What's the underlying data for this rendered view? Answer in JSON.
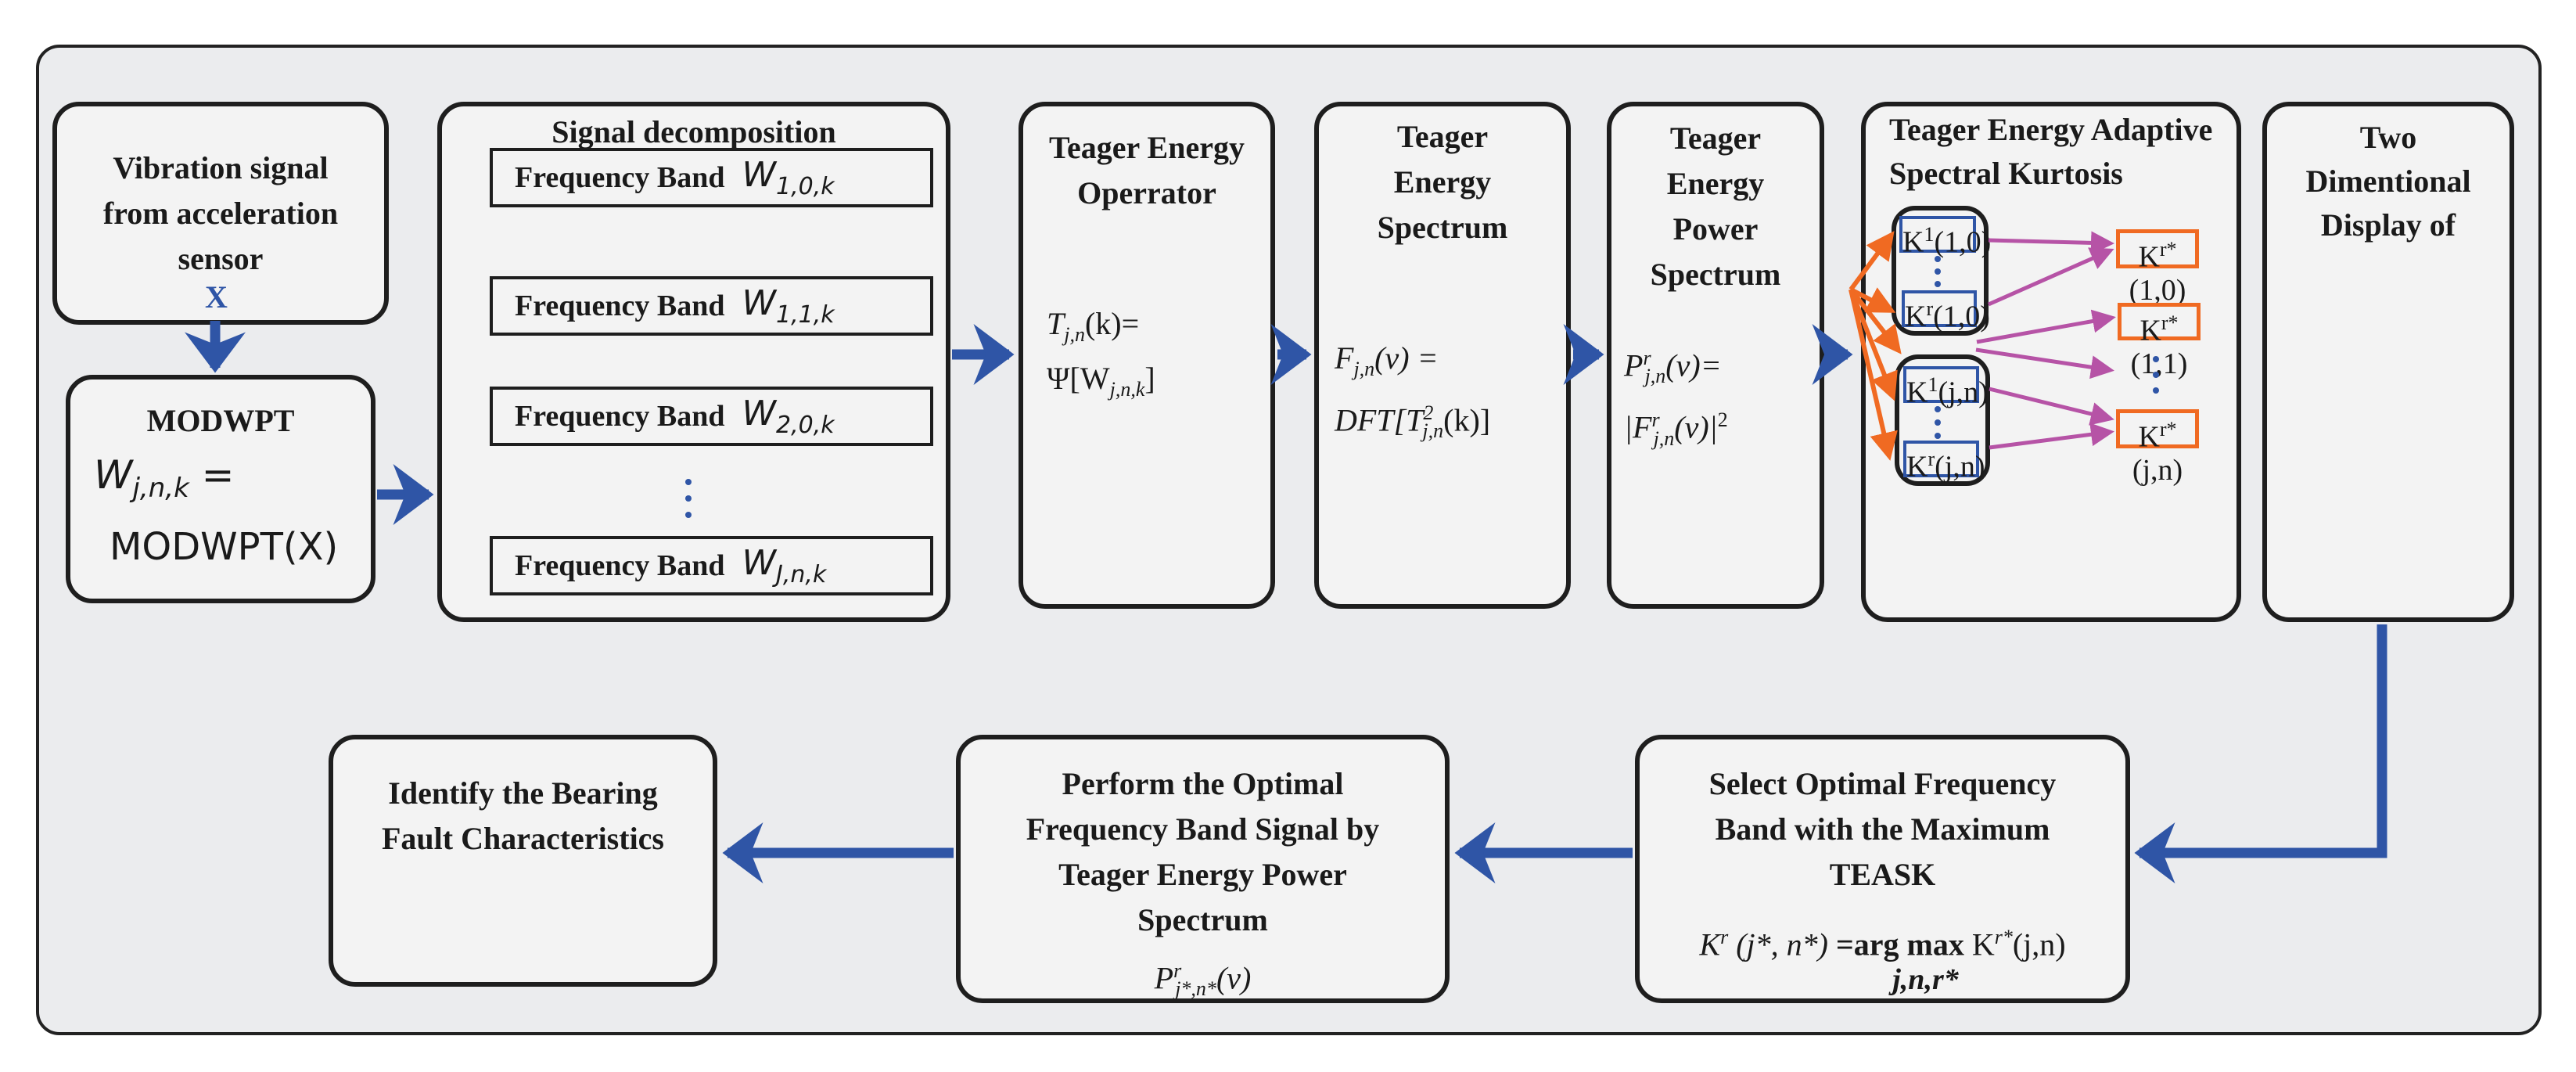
{
  "input": {
    "title": "Vibration signal from acceleration sensor",
    "x_label": "X"
  },
  "modwpt": {
    "title": "MODWPT",
    "f_base": "W",
    "f_sub": "j,n,k",
    "f_eq": " =",
    "f2": "MODWPT(X)"
  },
  "decomp": {
    "title": "Signal decomposition",
    "bands": [
      {
        "label": "Frequency Band",
        "sym": "W",
        "sub": "1,0,k"
      },
      {
        "label": "Frequency Band",
        "sym": "W",
        "sub": "1,1,k"
      },
      {
        "label": "Frequency Band",
        "sym": "W",
        "sub": "2,0,k"
      },
      {
        "label": "Frequency Band",
        "sym": "W",
        "sub": "J,n,k"
      }
    ]
  },
  "operator": {
    "title": "Teager Energy Operrator",
    "f1_base": "T",
    "f1_sub": "j,n",
    "f1_rest": "(k)=",
    "f2_pre": "Ψ[W",
    "f2_sub": "j,n,k",
    "f2_post": "]"
  },
  "spectrum": {
    "title": "Teager Energy Spectrum",
    "f1_base": "F",
    "f1_sub": "j,n",
    "f1_rest": "(ν) =",
    "f2_pre": "DFT[T",
    "f2_sup": "2",
    "f2_sub": "j,n",
    "f2_post": "(k)]"
  },
  "power": {
    "title": "Teager Energy Power Spectrum",
    "f1_base": "P",
    "f1_sup": "r",
    "f1_sub": "j,n",
    "f1_rest": "(ν)=",
    "f2_pre": "|F",
    "f2_sup": "r",
    "f2_sub": "j,n",
    "f2_post": "(ν)|",
    "f2_exp": "2"
  },
  "teask": {
    "title": "Teager Energy Adaptive Spectral Kurtosis",
    "items": [
      {
        "base": "K",
        "sup": "1",
        "arg": "(1,0)"
      },
      {
        "base": "K",
        "sup": "r",
        "arg": "(1,0)"
      },
      {
        "base": "K",
        "sup": "1",
        "arg": "(j,n)"
      },
      {
        "base": "K",
        "sup": "r",
        "arg": "(j,n)"
      }
    ]
  },
  "display": {
    "title": "Two Dimentional Display of",
    "items": [
      {
        "base": "K",
        "sup": "r*",
        "arg": "(1,0)"
      },
      {
        "base": "K",
        "sup": "r*",
        "arg": "(1,1)"
      },
      {
        "base": "K",
        "sup": "r*",
        "arg": "(j,n)"
      }
    ]
  },
  "select": {
    "title": "Select Optimal Frequency Band with the Maximum TEASK",
    "f_lhs": "K",
    "f_lhs_sup": "r",
    "f_lhs_arg": " (j*, n*)",
    "f_op": " =arg max ",
    "f_rhs": "K",
    "f_rhs_sup": "r*",
    "f_rhs_arg": "(j,n)",
    "f_under": "j,n,r*"
  },
  "perform": {
    "title": "Perform the Optimal Frequency Band Signal by Teager Energy Power Spectrum",
    "f_base": "P",
    "f_sup": "r",
    "f_sub": "j*,n*",
    "f_rest": "(ν)"
  },
  "identify": {
    "title": "Identify the Bearing Fault Characteristics"
  },
  "colors": {
    "flow_arrow": "#2f55a6",
    "orange": "#f06a22",
    "magenta": "#b653a6",
    "background": "#ebecee"
  }
}
